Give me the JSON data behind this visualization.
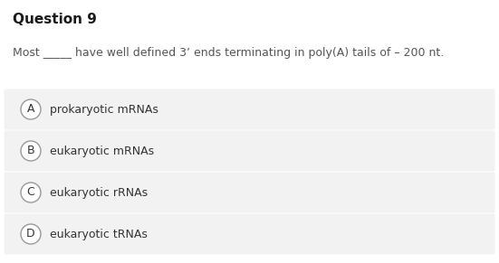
{
  "title": "Question 9",
  "question": "Most _____ have well defined 3’ ends terminating in poly(A) tails of – 200 nt.",
  "options": [
    {
      "label": "A",
      "text": "prokaryotic mRNAs"
    },
    {
      "label": "B",
      "text": "eukaryotic mRNAs"
    },
    {
      "label": "C",
      "text": "eukaryotic rRNAs"
    },
    {
      "label": "D",
      "text": "eukaryotic tRNAs"
    }
  ],
  "bg_color": "#ffffff",
  "option_bg_color": "#f2f2f2",
  "title_color": "#1a1a1a",
  "question_color": "#555555",
  "option_text_color": "#333333",
  "circle_edge_color": "#999999",
  "title_fontsize": 11,
  "question_fontsize": 9,
  "option_fontsize": 9,
  "label_fontsize": 9,
  "fig_width": 5.51,
  "fig_height": 2.91,
  "dpi": 100
}
